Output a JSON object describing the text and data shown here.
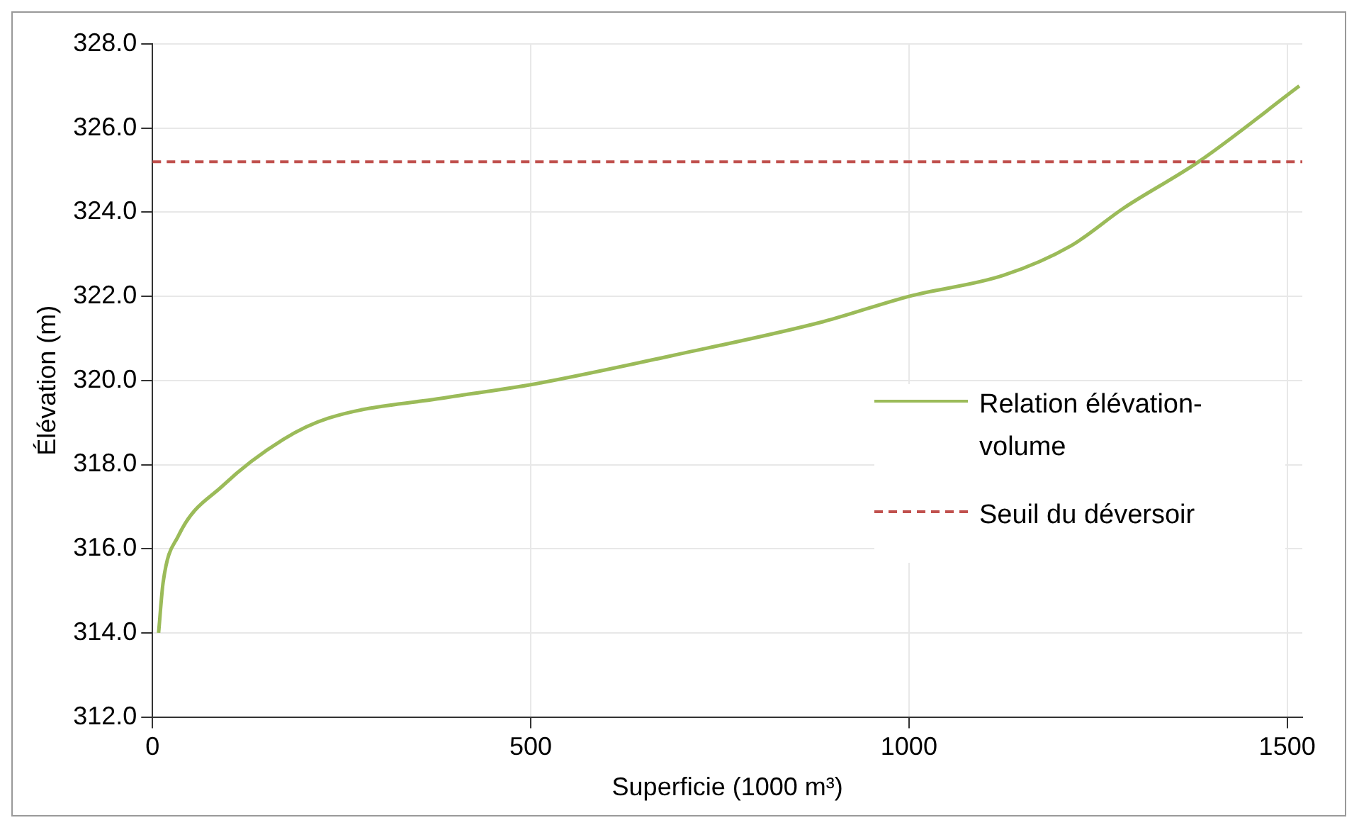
{
  "chart_data": {
    "type": "line",
    "xlabel": "Superficie (1000 m³)",
    "ylabel": "Élévation (m)",
    "x": [
      8,
      14,
      34,
      93,
      173,
      232,
      391,
      500,
      689,
      887,
      1000,
      1125,
      1214,
      1284,
      1383,
      1516
    ],
    "series": [
      {
        "name": "Relation élévation-volume",
        "color": "#9bbb59",
        "values": [
          314.0,
          315.2,
          316.3,
          317.5,
          318.6,
          319.1,
          319.6,
          319.9,
          320.6,
          321.4,
          322.0,
          322.5,
          323.2,
          324.1,
          325.2,
          327.0
        ]
      }
    ],
    "ref_lines": [
      {
        "axis": "y",
        "value": 325.2,
        "label": "Seuil du déversoir",
        "color": "#c0504d",
        "line_style": "dashed"
      }
    ],
    "xlim": [
      0,
      1520
    ],
    "xticks": [
      0,
      500,
      1000,
      1500
    ],
    "ylim": [
      312,
      328
    ],
    "yticks": [
      {
        "value": 312,
        "label": "312.0"
      },
      {
        "value": 314,
        "label": "314.0"
      },
      {
        "value": 316,
        "label": "316.0"
      },
      {
        "value": 318,
        "label": "318.0"
      },
      {
        "value": 320,
        "label": "320.0"
      },
      {
        "value": 322,
        "label": "322.0"
      },
      {
        "value": 324,
        "label": "324.0"
      },
      {
        "value": 326,
        "label": "326.0"
      },
      {
        "value": 328,
        "label": "328.0"
      }
    ],
    "grid": true,
    "legend": "right",
    "marker": "none",
    "line_style": "solid"
  }
}
